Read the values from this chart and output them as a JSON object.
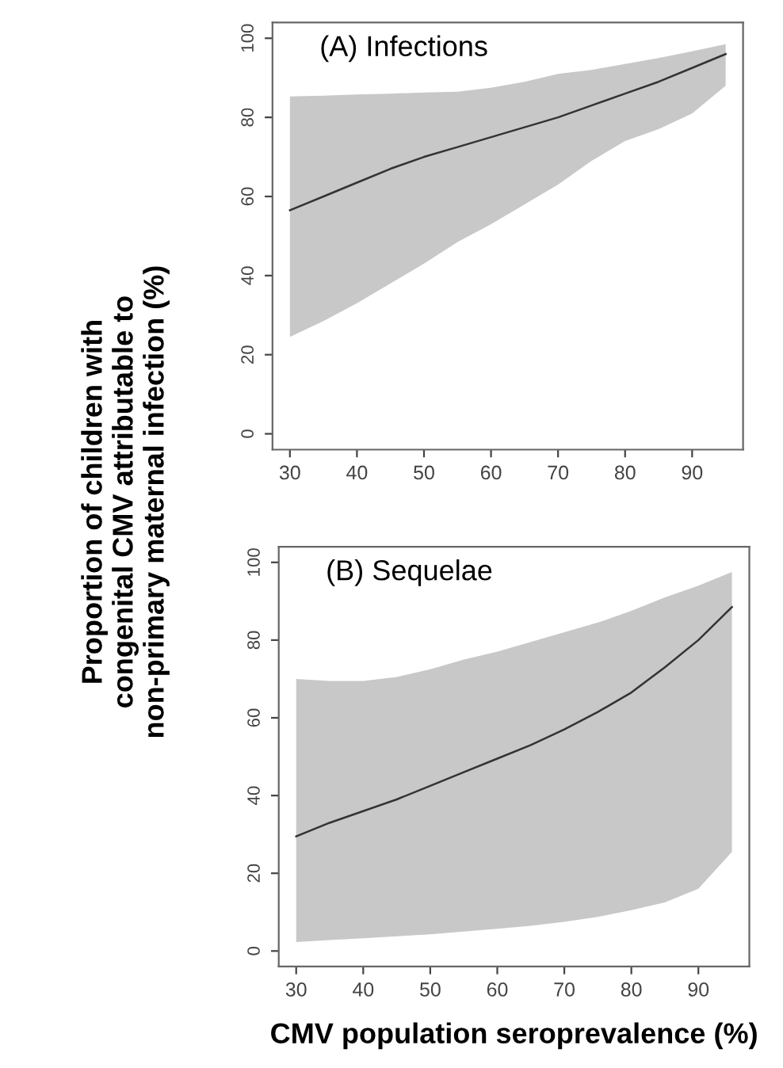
{
  "chart_data": [
    {
      "type": "line",
      "title": "(A) Infections",
      "ylabel": "Proportion of children with\ncongenital CMV attributable to\nnon-primary maternal infection (%)",
      "xlim": [
        27.4,
        97.6
      ],
      "ylim": [
        -4,
        104
      ],
      "xticks": [
        30,
        40,
        50,
        60,
        70,
        80,
        90
      ],
      "yticks": [
        0,
        20,
        40,
        60,
        80,
        100
      ],
      "grid": false,
      "x": [
        30,
        35,
        40,
        45,
        50,
        55,
        60,
        65,
        70,
        75,
        80,
        85,
        90,
        95
      ],
      "series": [
        {
          "color": "#333333",
          "values": [
            56.5,
            60,
            63.5,
            67,
            70,
            72.5,
            75,
            77.5,
            80,
            83,
            86,
            89,
            92.5,
            96
          ],
          "lower": [
            24.5,
            28.5,
            33,
            38,
            43,
            48.5,
            53,
            58,
            63,
            69,
            74,
            77,
            81,
            88
          ],
          "upper": [
            85.3,
            85.5,
            85.8,
            86,
            86.3,
            86.5,
            87.5,
            89,
            91,
            92,
            93.5,
            95,
            96.7,
            98.5
          ]
        }
      ]
    },
    {
      "type": "line",
      "title": "(B) Sequelae",
      "xlabel": "CMV population seroprevalence (%)",
      "xlim": [
        27.4,
        97.6
      ],
      "ylim": [
        -4,
        104
      ],
      "xticks": [
        30,
        40,
        50,
        60,
        70,
        80,
        90
      ],
      "yticks": [
        0,
        20,
        40,
        60,
        80,
        100
      ],
      "grid": false,
      "x": [
        30,
        35,
        40,
        45,
        50,
        55,
        60,
        65,
        70,
        75,
        80,
        85,
        90,
        95
      ],
      "series": [
        {
          "color": "#333333",
          "values": [
            29.5,
            33,
            36,
            39,
            42.5,
            46,
            49.5,
            53,
            57,
            61.5,
            66.5,
            73,
            80,
            88.5
          ],
          "lower": [
            2.3,
            2.8,
            3.3,
            3.8,
            4.3,
            5,
            5.7,
            6.5,
            7.5,
            8.8,
            10.5,
            12.5,
            16,
            25.5
          ],
          "upper": [
            70,
            69.5,
            69.5,
            70.5,
            72.5,
            75,
            77,
            79.5,
            82,
            84.5,
            87.5,
            91,
            94,
            97.5
          ]
        }
      ]
    }
  ]
}
